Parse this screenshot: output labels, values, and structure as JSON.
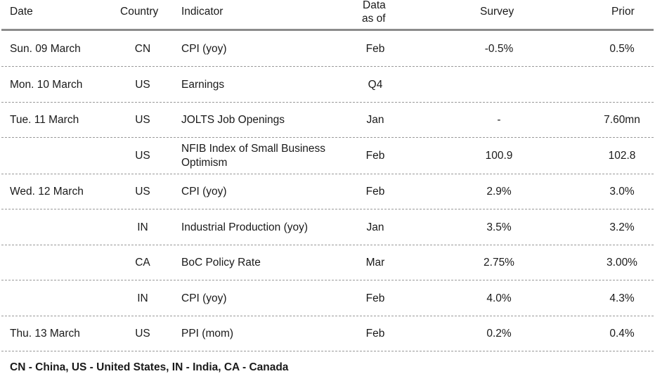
{
  "header": {
    "date": "Date",
    "country": "Country",
    "indicator": "Indicator",
    "asof_line1": "Data",
    "asof_line2": "as of",
    "survey": "Survey",
    "prior": "Prior"
  },
  "rows": [
    {
      "date": "Sun. 09 March",
      "country": "CN",
      "indicator": "CPI (yoy)",
      "asof": "Feb",
      "survey": "-0.5%",
      "prior": "0.5%"
    },
    {
      "date": "Mon. 10 March",
      "country": "US",
      "indicator": "Earnings",
      "asof": "Q4",
      "survey": "",
      "prior": ""
    },
    {
      "date": "Tue. 11 March",
      "country": "US",
      "indicator": "JOLTS Job Openings",
      "asof": "Jan",
      "survey": "-",
      "prior": "7.60mn"
    },
    {
      "date": "",
      "country": "US",
      "indicator": "NFIB Index of Small Business Optimism",
      "asof": "Feb",
      "survey": "100.9",
      "prior": "102.8"
    },
    {
      "date": "Wed. 12 March",
      "country": "US",
      "indicator": "CPI (yoy)",
      "asof": "Feb",
      "survey": "2.9%",
      "prior": "3.0%"
    },
    {
      "date": "",
      "country": "IN",
      "indicator": "Industrial Production (yoy)",
      "asof": "Jan",
      "survey": "3.5%",
      "prior": "3.2%"
    },
    {
      "date": "",
      "country": "CA",
      "indicator": "BoC Policy Rate",
      "asof": "Mar",
      "survey": "2.75%",
      "prior": "3.00%"
    },
    {
      "date": "",
      "country": "IN",
      "indicator": "CPI (yoy)",
      "asof": "Feb",
      "survey": "4.0%",
      "prior": "4.3%"
    },
    {
      "date": "Thu. 13 March",
      "country": "US",
      "indicator": "PPI (mom)",
      "asof": "Feb",
      "survey": "0.2%",
      "prior": "0.4%"
    }
  ],
  "footer": "CN - China, US - United States, IN - India, CA - Canada"
}
